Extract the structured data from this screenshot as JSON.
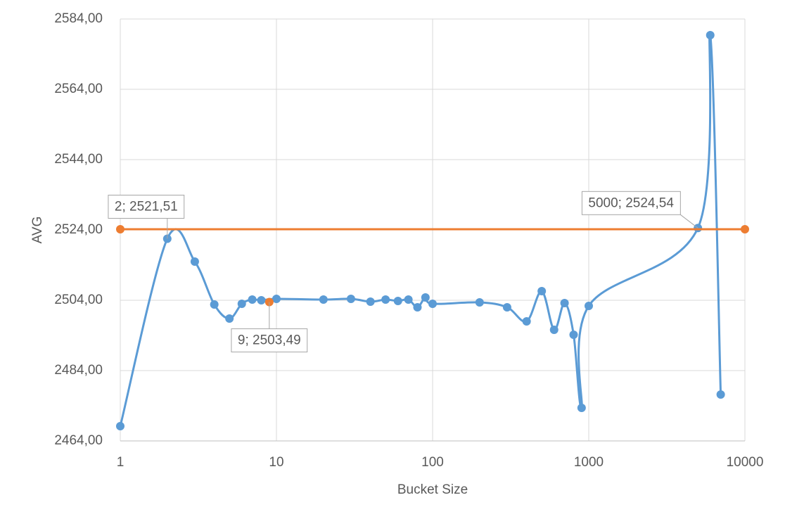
{
  "chart_data": {
    "type": "line",
    "x_label": "Bucket Size",
    "y_label": "AVG",
    "xscale": "log",
    "xlim": [
      1,
      10000
    ],
    "xticks": [
      1,
      10,
      100,
      1000,
      10000
    ],
    "ylim": [
      2464,
      2584
    ],
    "yticks": [
      {
        "value": 2464,
        "label": "2464,00"
      },
      {
        "value": 2484,
        "label": "2484,00"
      },
      {
        "value": 2504,
        "label": "2504,00"
      },
      {
        "value": 2524,
        "label": "2524,00"
      },
      {
        "value": 2544,
        "label": "2544,00"
      },
      {
        "value": 2564,
        "label": "2564,00"
      },
      {
        "value": 2584,
        "label": "2584,00"
      }
    ],
    "grid": true,
    "smooth": true,
    "series": [
      {
        "color": "#5b9bd5",
        "x": [
          1,
          2,
          3,
          4,
          5,
          6,
          7,
          8,
          10,
          20,
          30,
          40,
          50,
          60,
          70,
          80,
          90,
          100,
          200,
          300,
          400,
          500,
          600,
          700,
          800,
          900,
          1000,
          5000,
          6000,
          7000
        ],
        "values": [
          2468.2,
          2521.51,
          2515.0,
          2502.8,
          2498.8,
          2503.0,
          2504.2,
          2504.0,
          2504.4,
          2504.2,
          2504.4,
          2503.6,
          2504.2,
          2503.8,
          2504.2,
          2502.0,
          2504.8,
          2503.0,
          2503.4,
          2502.0,
          2498.0,
          2506.6,
          2495.6,
          2503.2,
          2494.2,
          2473.4,
          2502.4,
          2524.54,
          2579.4,
          2477.2
        ]
      },
      {
        "color": "#ed7d31",
        "x": [
          1,
          10000
        ],
        "values": [
          2524.2,
          2524.2
        ]
      },
      {
        "color": "#ed7d31",
        "x": [
          9
        ],
        "values": [
          2503.49
        ],
        "markers_only": true
      }
    ],
    "annotations": [
      {
        "text": "2; 2521,51",
        "x": 2,
        "y": 2521.51
      },
      {
        "text": "9; 2503,49",
        "x": 9,
        "y": 2503.49
      },
      {
        "text": "5000; 2524,54",
        "x": 5000,
        "y": 2524.54
      }
    ]
  }
}
